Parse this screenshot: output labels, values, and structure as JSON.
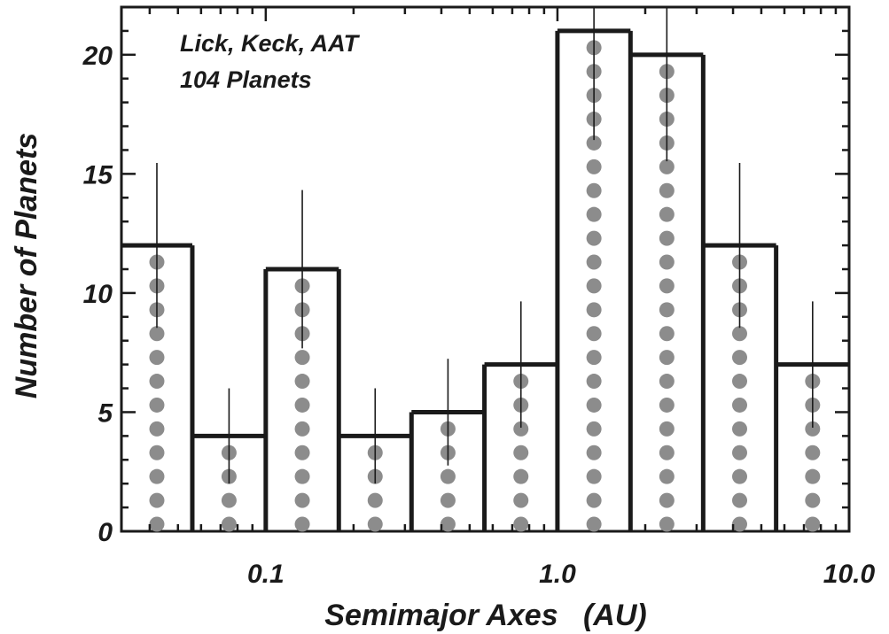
{
  "chart_data": {
    "type": "bar",
    "title": "",
    "xlabel": "Semimajor Axes   (AU)",
    "ylabel": "Number of Planets",
    "x_scale": "log",
    "xlim": [
      0.032,
      10.0
    ],
    "ylim": [
      0,
      22
    ],
    "x_tick_labels": [
      "0.1",
      "1.0",
      "10.0"
    ],
    "x_tick_values": [
      0.1,
      1.0,
      10.0
    ],
    "y_tick_labels": [
      "0",
      "5",
      "10",
      "15",
      "20"
    ],
    "y_tick_values": [
      0,
      5,
      10,
      15,
      20
    ],
    "bin_edges": [
      0.032,
      0.056,
      0.1,
      0.178,
      0.316,
      0.562,
      1.0,
      1.78,
      3.16,
      5.62,
      10.0
    ],
    "values": [
      12,
      4,
      11,
      4,
      5,
      7,
      21,
      20,
      12,
      7
    ],
    "error_bars": [
      3.46,
      2.0,
      3.32,
      2.0,
      2.24,
      2.65,
      4.58,
      4.47,
      3.46,
      2.65
    ],
    "annotations": [
      "Lick, Keck, AAT",
      "104 Planets"
    ],
    "grid": false,
    "colors": {
      "outline": "#1a1a1a",
      "dots": "#8c8c8c",
      "error_bar": "#1a1a1a",
      "background": "#ffffff"
    }
  }
}
